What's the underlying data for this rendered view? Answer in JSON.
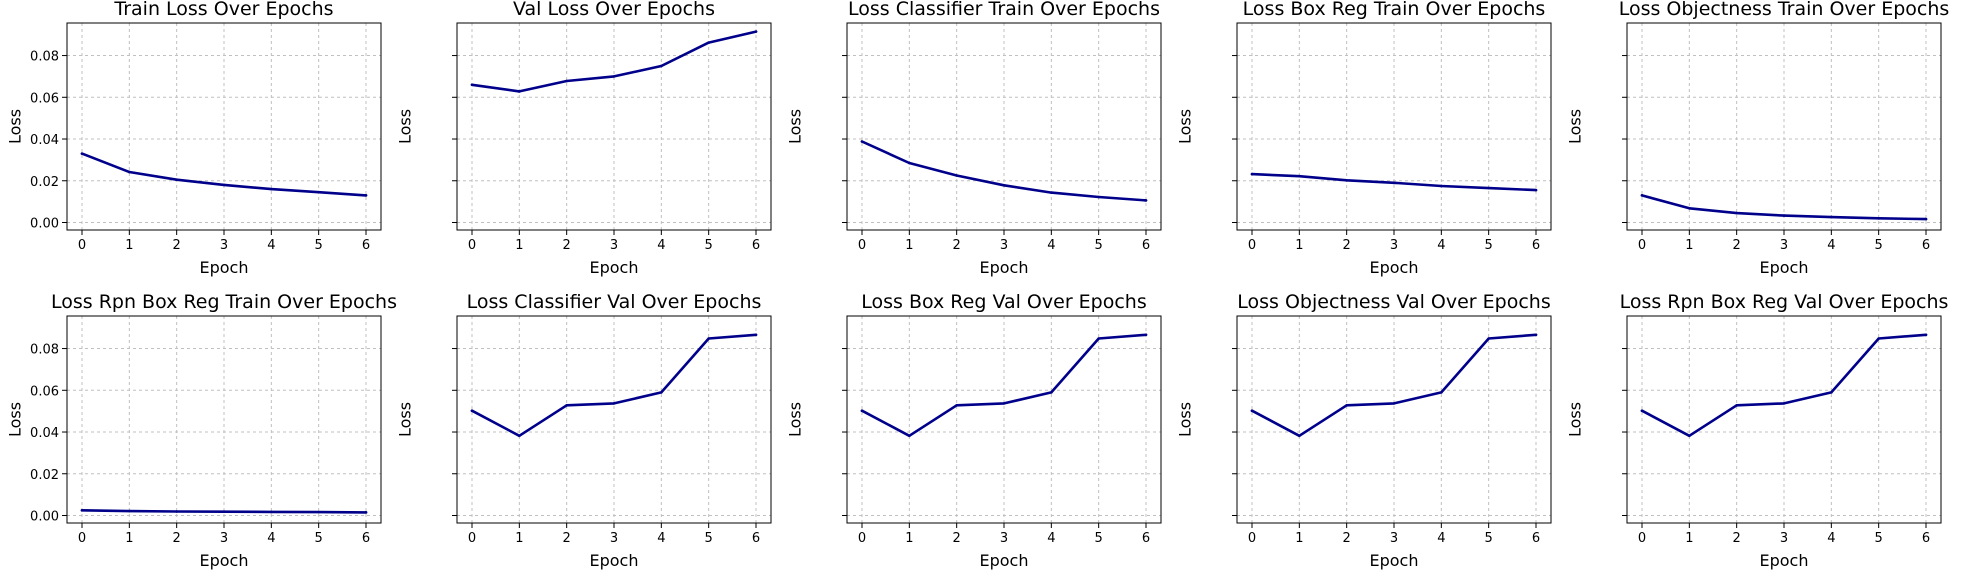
{
  "colors": {
    "line": "#00008B",
    "grid": "#c0c0c0",
    "frame": "#000000",
    "background": "#ffffff"
  },
  "chart_data": [
    {
      "type": "line",
      "title": "Train Loss Over Epochs",
      "xlabel": "Epoch",
      "ylabel": "Loss",
      "x": [
        0,
        1,
        2,
        3,
        4,
        5,
        6
      ],
      "values": [
        0.033,
        0.0242,
        0.0205,
        0.018,
        0.016,
        0.0145,
        0.013
      ],
      "xticks": [
        "0",
        "1",
        "2",
        "3",
        "4",
        "5",
        "6"
      ],
      "yticks": [
        "0.00",
        "0.02",
        "0.04",
        "0.06",
        "0.08"
      ],
      "ylim": [
        -0.0036,
        0.0956
      ],
      "grid": true
    },
    {
      "type": "line",
      "title": "Val Loss Over Epochs",
      "xlabel": "Epoch",
      "ylabel": "Loss",
      "x": [
        0,
        1,
        2,
        3,
        4,
        5,
        6
      ],
      "values": [
        0.066,
        0.0628,
        0.0678,
        0.07,
        0.075,
        0.0862,
        0.0915
      ],
      "xticks": [
        "0",
        "1",
        "2",
        "3",
        "4",
        "5",
        "6"
      ],
      "yticks": [],
      "ylim": [
        -0.0036,
        0.0956
      ],
      "grid": true
    },
    {
      "type": "line",
      "title": "Loss Classifier Train Over Epochs",
      "xlabel": "Epoch",
      "ylabel": "Loss",
      "x": [
        0,
        1,
        2,
        3,
        4,
        5,
        6
      ],
      "values": [
        0.0388,
        0.0285,
        0.0225,
        0.0178,
        0.0143,
        0.0122,
        0.0106
      ],
      "xticks": [
        "0",
        "1",
        "2",
        "3",
        "4",
        "5",
        "6"
      ],
      "yticks": [],
      "ylim": [
        -0.0036,
        0.0956
      ],
      "grid": true
    },
    {
      "type": "line",
      "title": "Loss Box Reg Train Over Epochs",
      "xlabel": "Epoch",
      "ylabel": "Loss",
      "x": [
        0,
        1,
        2,
        3,
        4,
        5,
        6
      ],
      "values": [
        0.0232,
        0.0222,
        0.0202,
        0.019,
        0.0175,
        0.0165,
        0.0155
      ],
      "xticks": [
        "0",
        "1",
        "2",
        "3",
        "4",
        "5",
        "6"
      ],
      "yticks": [],
      "ylim": [
        -0.0036,
        0.0956
      ],
      "grid": true
    },
    {
      "type": "line",
      "title": "Loss Objectness Train Over Epochs",
      "xlabel": "Epoch",
      "ylabel": "Loss",
      "x": [
        0,
        1,
        2,
        3,
        4,
        5,
        6
      ],
      "values": [
        0.013,
        0.0068,
        0.0045,
        0.0033,
        0.0026,
        0.002,
        0.0016
      ],
      "xticks": [
        "0",
        "1",
        "2",
        "3",
        "4",
        "5",
        "6"
      ],
      "yticks": [],
      "ylim": [
        -0.0036,
        0.0956
      ],
      "grid": true
    },
    {
      "type": "line",
      "title": "Loss Rpn Box Reg Train Over Epochs",
      "xlabel": "Epoch",
      "ylabel": "Loss",
      "x": [
        0,
        1,
        2,
        3,
        4,
        5,
        6
      ],
      "values": [
        0.0025,
        0.0021,
        0.0019,
        0.0018,
        0.0017,
        0.0016,
        0.0015
      ],
      "xticks": [
        "0",
        "1",
        "2",
        "3",
        "4",
        "5",
        "6"
      ],
      "yticks": [
        "0.00",
        "0.02",
        "0.04",
        "0.06",
        "0.08"
      ],
      "ylim": [
        -0.0036,
        0.0956
      ],
      "grid": true
    },
    {
      "type": "line",
      "title": "Loss Classifier Val Over Epochs",
      "xlabel": "Epoch",
      "ylabel": "Loss",
      "x": [
        0,
        1,
        2,
        3,
        4,
        5,
        6
      ],
      "values": [
        0.0502,
        0.0382,
        0.0528,
        0.0537,
        0.059,
        0.0848,
        0.0866
      ],
      "xticks": [
        "0",
        "1",
        "2",
        "3",
        "4",
        "5",
        "6"
      ],
      "yticks": [],
      "ylim": [
        -0.0036,
        0.0956
      ],
      "grid": true
    },
    {
      "type": "line",
      "title": "Loss Box Reg Val Over Epochs",
      "xlabel": "Epoch",
      "ylabel": "Loss",
      "x": [
        0,
        1,
        2,
        3,
        4,
        5,
        6
      ],
      "values": [
        0.0502,
        0.0382,
        0.0528,
        0.0537,
        0.059,
        0.0848,
        0.0866
      ],
      "xticks": [
        "0",
        "1",
        "2",
        "3",
        "4",
        "5",
        "6"
      ],
      "yticks": [],
      "ylim": [
        -0.0036,
        0.0956
      ],
      "grid": true
    },
    {
      "type": "line",
      "title": "Loss Objectness Val Over Epochs",
      "xlabel": "Epoch",
      "ylabel": "Loss",
      "x": [
        0,
        1,
        2,
        3,
        4,
        5,
        6
      ],
      "values": [
        0.0502,
        0.0382,
        0.0528,
        0.0537,
        0.059,
        0.0848,
        0.0866
      ],
      "xticks": [
        "0",
        "1",
        "2",
        "3",
        "4",
        "5",
        "6"
      ],
      "yticks": [],
      "ylim": [
        -0.0036,
        0.0956
      ],
      "grid": true
    },
    {
      "type": "line",
      "title": "Loss Rpn Box Reg Val Over Epochs",
      "xlabel": "Epoch",
      "ylabel": "Loss",
      "x": [
        0,
        1,
        2,
        3,
        4,
        5,
        6
      ],
      "values": [
        0.0502,
        0.0382,
        0.0528,
        0.0537,
        0.059,
        0.0848,
        0.0866
      ],
      "xticks": [
        "0",
        "1",
        "2",
        "3",
        "4",
        "5",
        "6"
      ],
      "yticks": [],
      "ylim": [
        -0.0036,
        0.0956
      ],
      "grid": true
    }
  ]
}
